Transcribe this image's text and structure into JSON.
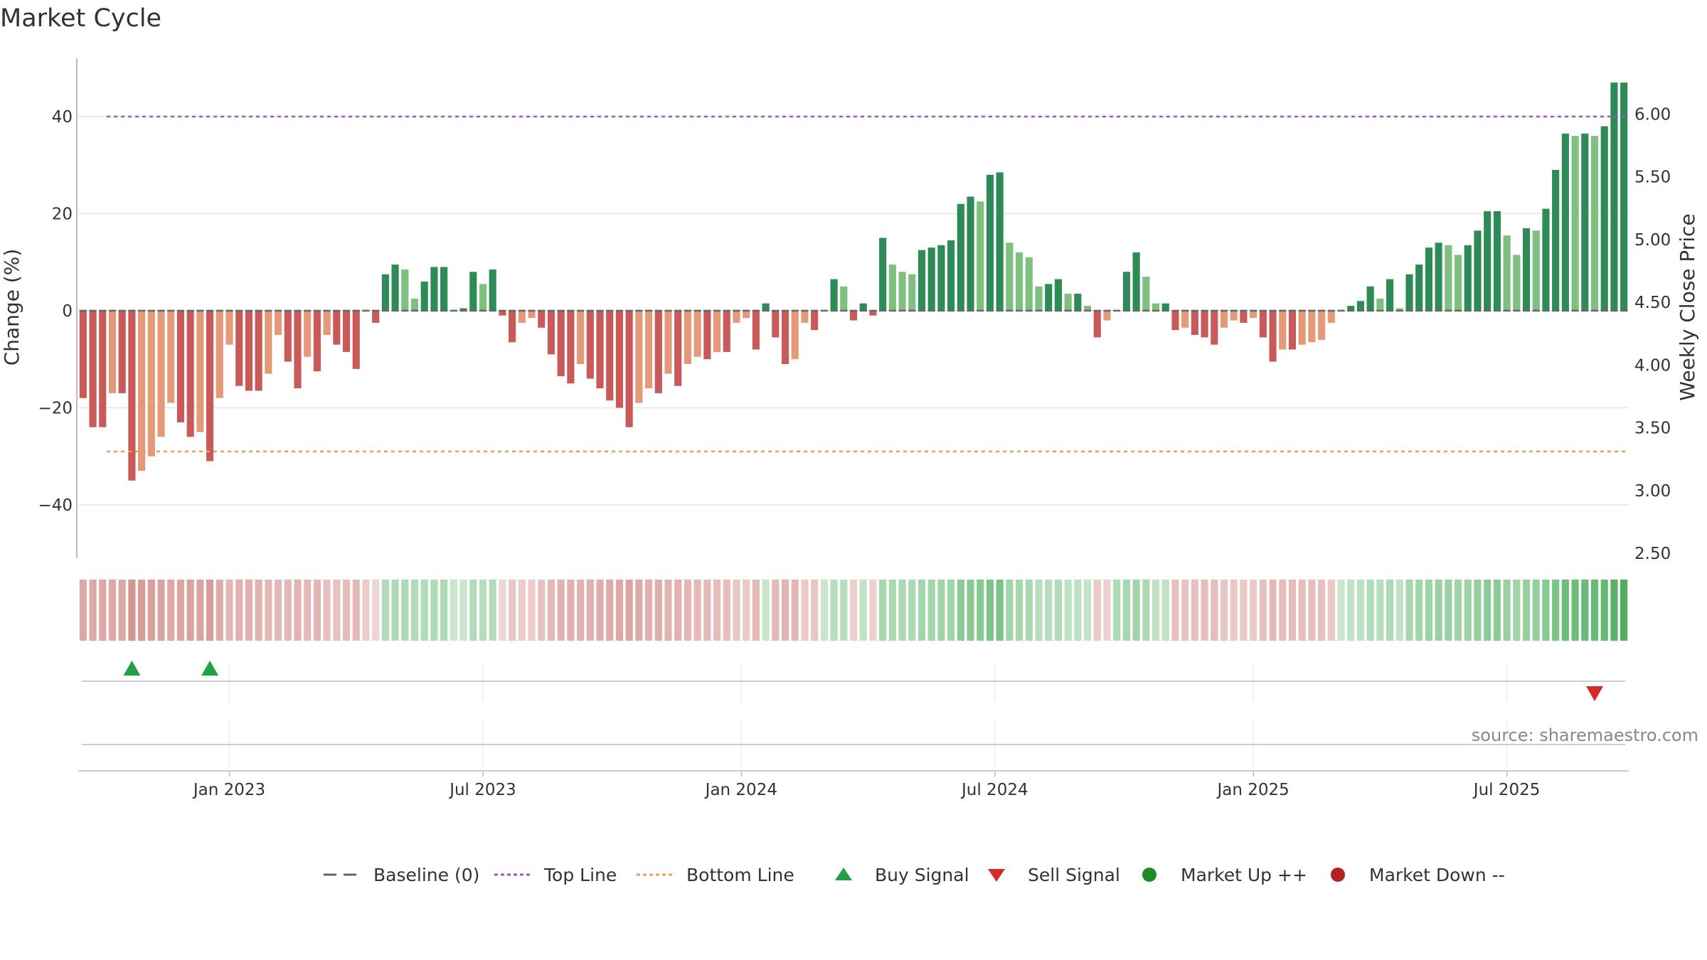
{
  "title": "Market Cycle",
  "source": "source: sharemaestro.com",
  "colors": {
    "strong_down": "#c85a5a",
    "mild_down": "#e49a78",
    "strong_up": "#2e8b57",
    "mild_up": "#7fbf7f",
    "top_line": "#9b59b6",
    "bottom_line": "#e0a060",
    "baseline": "#666666",
    "buy": "#22a045",
    "sell": "#d62a2a",
    "market_up": "#228b22",
    "market_down": "#b22222"
  },
  "chart_data": {
    "type": "bar",
    "ylabel": "Change (%)",
    "y2label": "Weekly Close Price",
    "ylim": [
      -51,
      52
    ],
    "yticks": [
      -40,
      -20,
      0,
      20,
      40
    ],
    "y2lim": [
      2.5,
      6.2
    ],
    "y2ticks": [
      "2.50",
      "3.00",
      "3.50",
      "4.00",
      "4.50",
      "5.00",
      "5.50",
      "6.00"
    ],
    "top_line": 40,
    "bottom_line": -29,
    "xticks": [
      "Jan 2023",
      "Jul 2023",
      "Jan 2024",
      "Jul 2024",
      "Jan 2025",
      "Jul 2025"
    ],
    "xtick_index": [
      15,
      41,
      67.5,
      93.5,
      120,
      146
    ],
    "values": [
      -18,
      -24,
      -24,
      -17,
      -17,
      -35,
      -33,
      -30,
      -26,
      -19,
      -23,
      -26,
      -25,
      -31,
      -18,
      -7,
      -15.5,
      -16.5,
      -16.5,
      -13,
      -5,
      -10.5,
      -16,
      -9.5,
      -12.5,
      -5,
      -7,
      -8.5,
      -12,
      0,
      -2.5,
      7.5,
      9.5,
      8.5,
      2.5,
      6,
      9,
      9,
      0,
      0.5,
      8,
      5.5,
      8.5,
      -1,
      -6.5,
      -2.5,
      -1.5,
      -3.5,
      -9,
      -13.5,
      -15,
      -11,
      -14,
      -16,
      -18.5,
      -20,
      -24,
      -19,
      -16,
      -17,
      -13,
      -15.5,
      -11,
      -9.5,
      -10,
      -8.5,
      -8.5,
      -2.5,
      -1.5,
      -8,
      1.5,
      -5.5,
      -11,
      -10,
      -2.5,
      -4,
      0,
      6.5,
      5,
      -2,
      1.5,
      -1,
      15,
      9.5,
      8,
      7.5,
      12.5,
      13,
      13.5,
      14.5,
      22,
      23.5,
      22.5,
      28,
      28.5,
      14,
      12,
      11,
      5,
      5.5,
      6.5,
      3.5,
      3.5,
      1,
      -5.5,
      -2,
      0,
      8,
      12,
      7,
      1.5,
      1.5,
      -4,
      -3.5,
      -5,
      -5.5,
      -7,
      -3.5,
      -2,
      -2.5,
      -1.5,
      -5.5,
      -10.5,
      -8,
      -8,
      -7,
      -6.5,
      -6,
      -2.5,
      0,
      1,
      2,
      5,
      2.5,
      6.5,
      0.5,
      7.5,
      9.5,
      13,
      14,
      13.5,
      11.5,
      13.5,
      16.5,
      20.5,
      20.5,
      15.5,
      11.5,
      17,
      16.5,
      21,
      29,
      36.5,
      36,
      36.5,
      36,
      38,
      47,
      47
    ],
    "heat": [
      -0.42,
      -0.42,
      -0.42,
      -0.42,
      -0.42,
      -0.55,
      -0.5,
      -0.48,
      -0.45,
      -0.42,
      -0.44,
      -0.46,
      -0.45,
      -0.5,
      -0.4,
      -0.32,
      -0.35,
      -0.35,
      -0.35,
      -0.32,
      -0.3,
      -0.32,
      -0.34,
      -0.3,
      -0.32,
      -0.25,
      -0.25,
      -0.28,
      -0.3,
      -0.18,
      -0.12,
      0.28,
      0.3,
      0.3,
      0.28,
      0.28,
      0.3,
      0.3,
      0.15,
      0.15,
      0.28,
      0.26,
      0.28,
      -0.12,
      -0.22,
      -0.18,
      -0.18,
      -0.25,
      -0.32,
      -0.35,
      -0.36,
      -0.34,
      -0.36,
      -0.38,
      -0.4,
      -0.42,
      -0.45,
      -0.4,
      -0.36,
      -0.37,
      -0.34,
      -0.35,
      -0.32,
      -0.3,
      -0.3,
      -0.28,
      -0.28,
      -0.22,
      -0.2,
      -0.3,
      0.15,
      -0.3,
      -0.34,
      -0.32,
      -0.2,
      -0.22,
      0.15,
      0.26,
      0.25,
      -0.15,
      0.2,
      -0.15,
      0.35,
      0.32,
      0.32,
      0.32,
      0.36,
      0.36,
      0.38,
      0.38,
      0.5,
      0.52,
      0.52,
      0.58,
      0.6,
      0.38,
      0.34,
      0.33,
      0.25,
      0.26,
      0.28,
      0.22,
      0.22,
      0.18,
      -0.2,
      -0.15,
      0.3,
      0.35,
      0.38,
      0.32,
      0.2,
      0.2,
      -0.25,
      -0.24,
      -0.26,
      -0.27,
      -0.28,
      -0.22,
      -0.2,
      -0.2,
      -0.18,
      -0.25,
      -0.3,
      -0.28,
      -0.28,
      -0.27,
      -0.26,
      -0.25,
      -0.2,
      0.15,
      0.2,
      0.22,
      0.28,
      0.25,
      0.3,
      0.2,
      0.35,
      0.36,
      0.4,
      0.42,
      0.42,
      0.38,
      0.4,
      0.45,
      0.5,
      0.5,
      0.42,
      0.38,
      0.44,
      0.44,
      0.52,
      0.6,
      0.68,
      0.68,
      0.7,
      0.7,
      0.72,
      0.8,
      0.85
    ],
    "buy_signals": [
      5,
      13
    ],
    "sell_signals": [
      155
    ],
    "legend": [
      {
        "label": "Baseline (0)",
        "marker": "dash"
      },
      {
        "label": "Top Line",
        "marker": "dotted-purple"
      },
      {
        "label": "Bottom Line",
        "marker": "dotted-orange"
      },
      {
        "label": "Buy Signal",
        "marker": "triangle-up"
      },
      {
        "label": "Sell Signal",
        "marker": "triangle-down"
      },
      {
        "label": "Market Up ++",
        "marker": "circle-green"
      },
      {
        "label": "Market Down --",
        "marker": "circle-red"
      }
    ]
  }
}
